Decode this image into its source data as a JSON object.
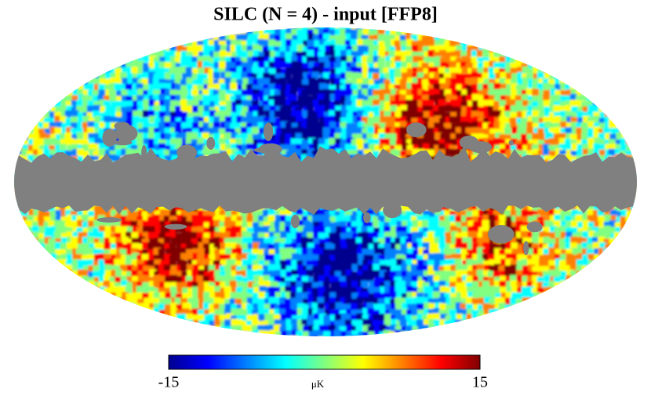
{
  "chart_data": {
    "type": "sky-map",
    "title": "SILC (N = 4) - input [FFP8]",
    "mask_color": "#808080",
    "colorbar": {
      "lim": [
        -15,
        15
      ],
      "ticks": [
        -15,
        15
      ],
      "label": "μK",
      "colormap": [
        "#00008f",
        "#0000ff",
        "#0080ff",
        "#00ffff",
        "#80ff80",
        "#ffff00",
        "#ff8000",
        "#ff0000",
        "#800000"
      ]
    }
  }
}
